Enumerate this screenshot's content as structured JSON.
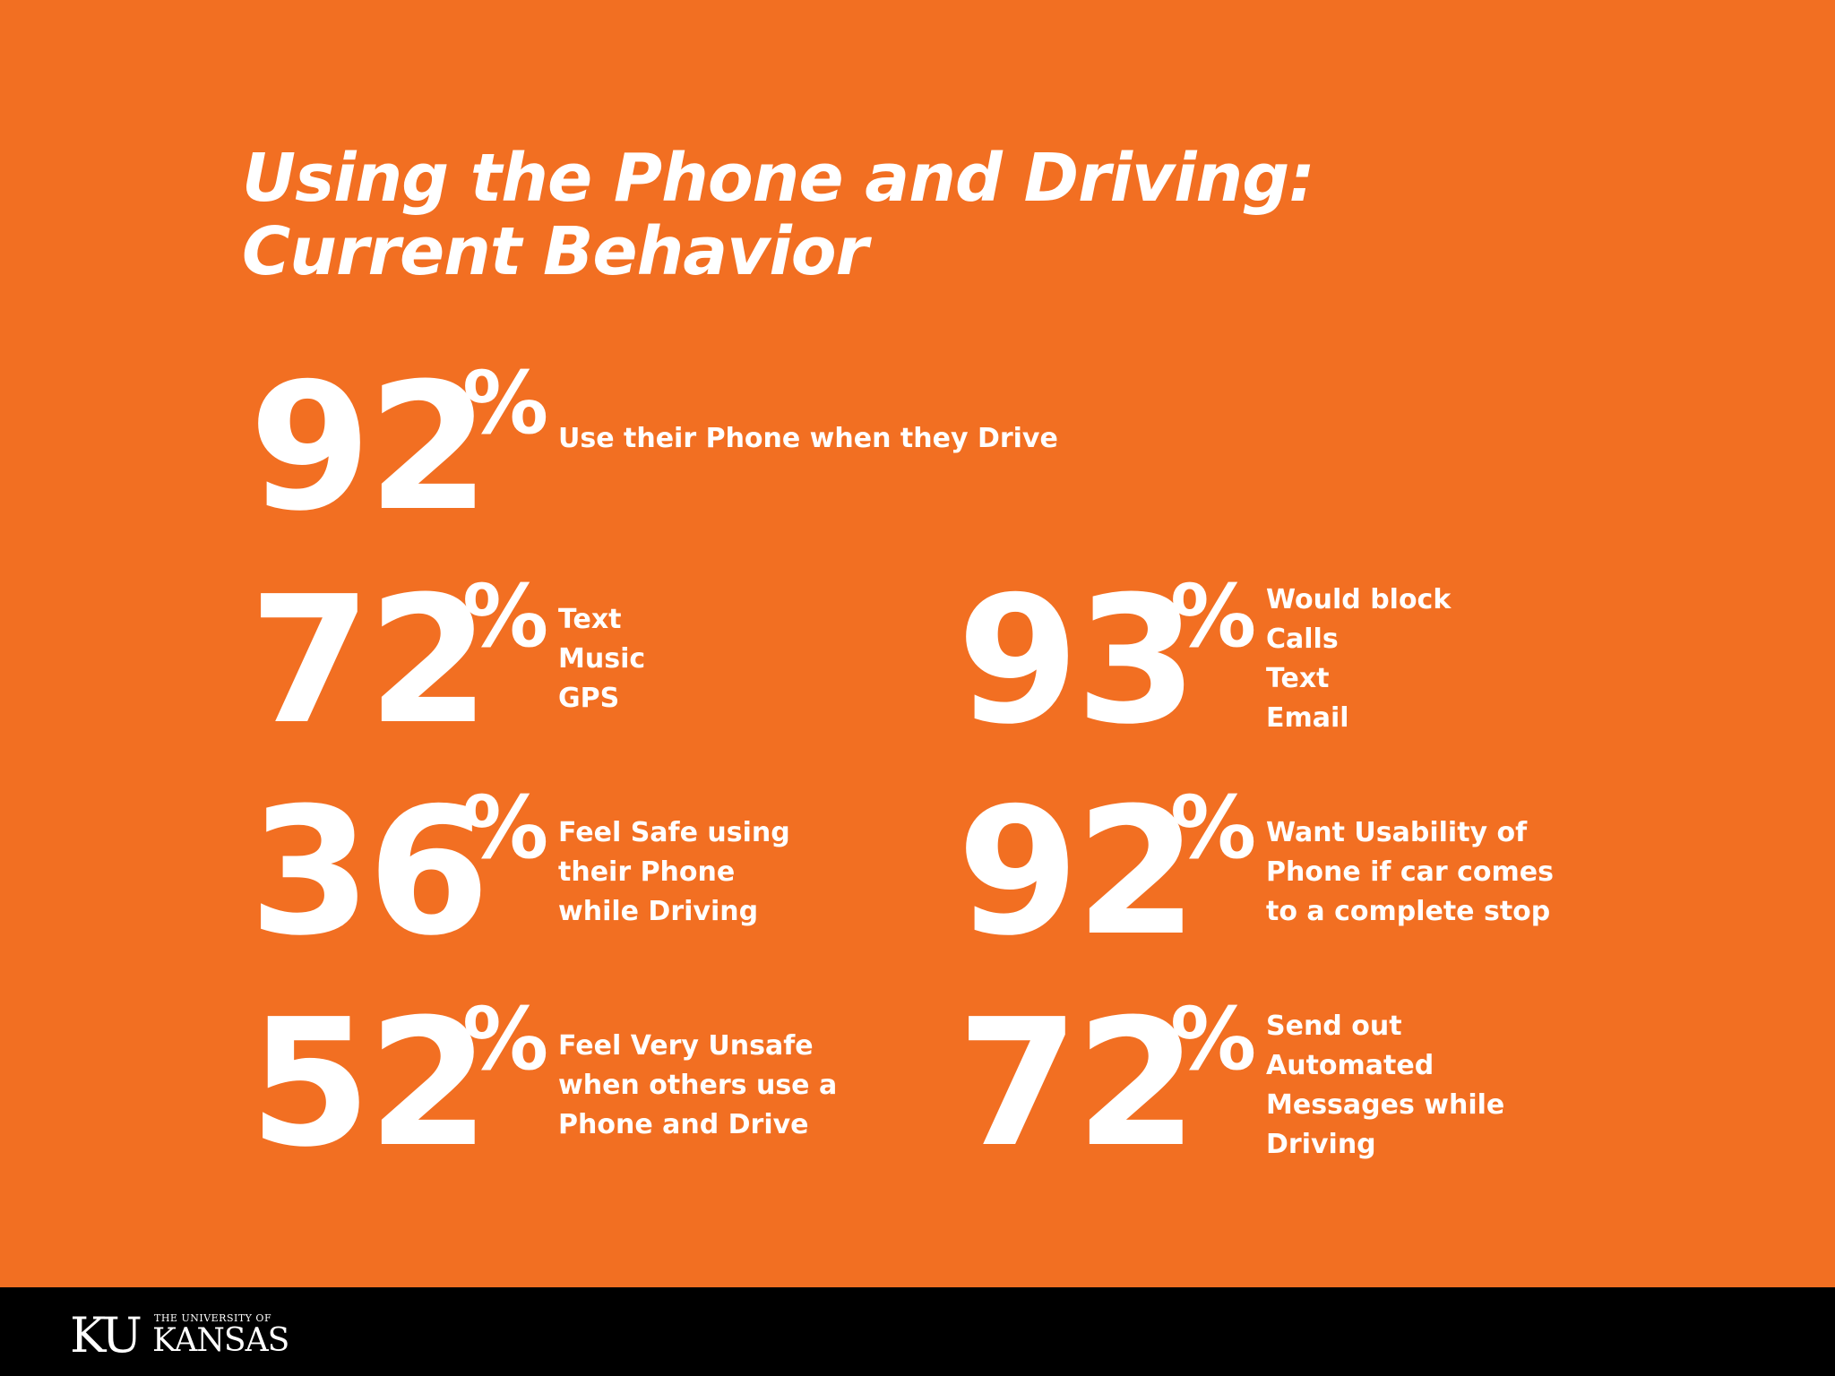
{
  "title": {
    "line1": "Using the Phone and Driving:",
    "line2": "Current Behavior"
  },
  "stats": [
    {
      "value": "92",
      "unit": "%",
      "lines": [
        "Use their Phone when they Drive"
      ]
    },
    {
      "value": "72",
      "unit": "%",
      "lines": [
        "Text",
        "Music",
        "GPS"
      ]
    },
    {
      "value": "36",
      "unit": "%",
      "lines": [
        "Feel Safe using",
        "their Phone",
        "while Driving"
      ]
    },
    {
      "value": "52",
      "unit": "%",
      "lines": [
        "Feel Very Unsafe",
        "when others use a",
        "Phone and Drive"
      ]
    },
    {
      "value": "93",
      "unit": "%",
      "lines": [
        "Would block",
        "Calls",
        "Text",
        "Email"
      ]
    },
    {
      "value": "92",
      "unit": "%",
      "lines": [
        "Want Usability of",
        "Phone if car comes",
        "to a complete stop"
      ]
    },
    {
      "value": "72",
      "unit": "%",
      "lines": [
        "Send out",
        "Automated",
        "Messages while",
        "Driving"
      ]
    }
  ],
  "footer": {
    "logo_ku": "KU",
    "logo_university": "THE UNIVERSITY OF",
    "logo_kansas": "KANSAS"
  },
  "colors": {
    "background": "#f26f22",
    "text": "#ffffff",
    "footer": "#000000"
  }
}
